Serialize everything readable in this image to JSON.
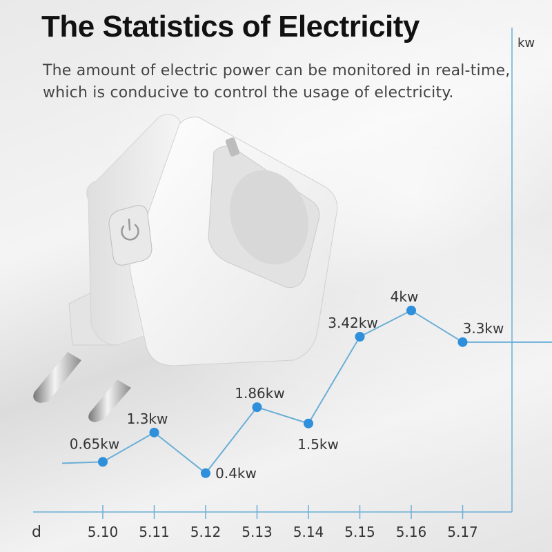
{
  "header": {
    "title": "The Statistics of Electricity",
    "subtitle_line1": "The amount of electric power can be monitored in real-time,",
    "subtitle_line2": "which is conducive to control the usage of electricity."
  },
  "product": {
    "icon": "power-icon"
  },
  "colors": {
    "line": "#6aaed6",
    "marker": "#2f8fdb",
    "text": "#333333"
  },
  "chart_data": {
    "type": "line",
    "xlabel": "d",
    "ylabel": "kw",
    "categories": [
      "5.10",
      "5.11",
      "5.12",
      "5.13",
      "5.14",
      "5.15",
      "5.16",
      "5.17"
    ],
    "values": [
      0.65,
      1.3,
      0.4,
      1.86,
      1.5,
      3.42,
      4,
      3.3
    ],
    "data_labels": [
      "0.65kw",
      "1.3kw",
      "0.4kw",
      "1.86kw",
      "1.5kw",
      "3.42kw",
      "4kw",
      "3.3kw"
    ],
    "ylim": [
      0,
      8
    ],
    "grid": false,
    "legend": "none"
  }
}
